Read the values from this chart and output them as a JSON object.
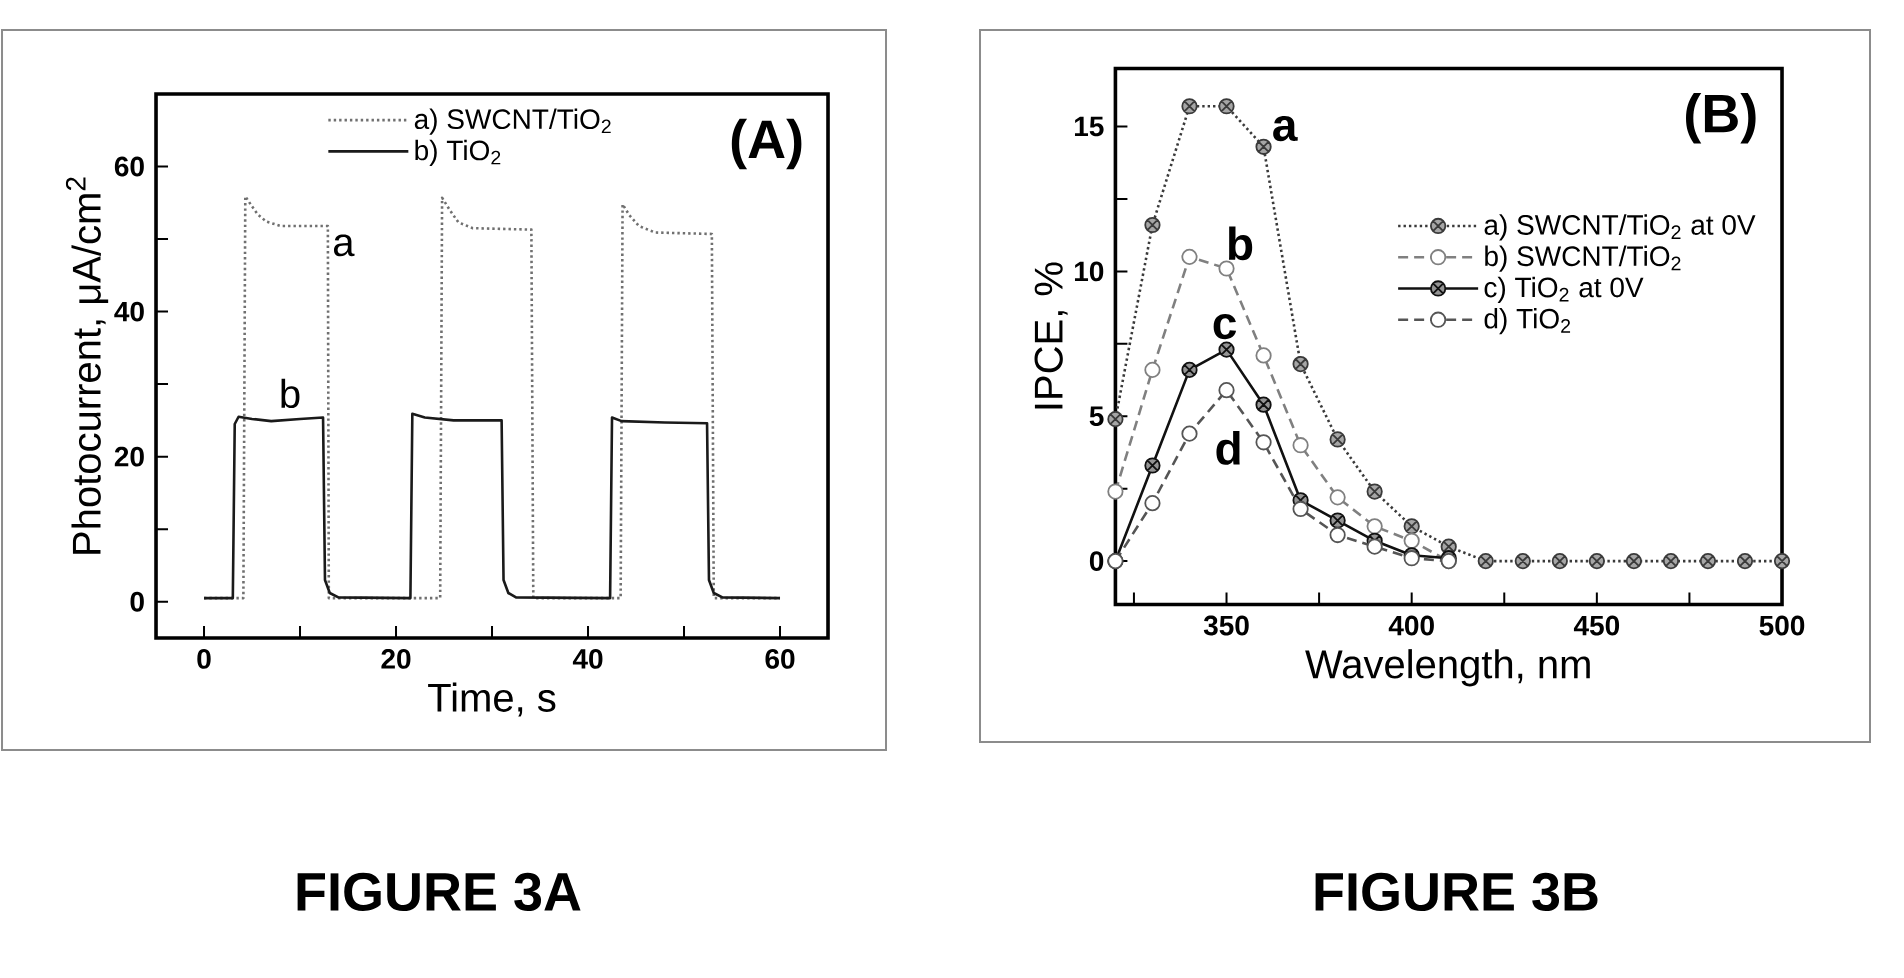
{
  "chart_data": [
    {
      "type": "line",
      "title": "(A)",
      "xlabel": "Time, s",
      "ylabel": "Photocurrent, μA/cm$^{2}$",
      "xlim": [
        -5,
        65
      ],
      "ylim": [
        -5,
        70
      ],
      "xticks": [
        0,
        {
          "value": 10,
          "label": null
        },
        20,
        {
          "value": 30,
          "label": null
        },
        40,
        {
          "value": 50,
          "label": null
        },
        60
      ],
      "yticks": [
        0,
        {
          "value": 10,
          "label": null
        },
        20,
        {
          "value": 30,
          "label": null
        },
        40,
        {
          "value": 50,
          "label": null
        },
        60
      ],
      "legend": "top",
      "series": [
        {
          "name": "a) SWCNT/TiO$_{2}$",
          "color": "#707070",
          "line_style": "dotted",
          "x": [
            0,
            4.1,
            4.3,
            5,
            5.6,
            6.5,
            8,
            12.9,
            13.0,
            24.6,
            24.8,
            25.6,
            26.5,
            28,
            34.1,
            34.3,
            43.4,
            43.6,
            44.3,
            45.3,
            47,
            52.9,
            53.1,
            60
          ],
          "values": [
            0.5,
            0.5,
            55.9,
            54.5,
            53.4,
            52.4,
            51.8,
            51.8,
            0.5,
            0.5,
            55.7,
            54,
            52.3,
            51.5,
            51.3,
            0.5,
            0.5,
            54.8,
            53.3,
            51.8,
            50.9,
            50.7,
            0.5,
            0.5
          ]
        },
        {
          "name": "b) TiO$_{2}$",
          "color": "#1a1a1a",
          "line_style": "solid",
          "x": [
            0,
            3.0,
            3.2,
            3.6,
            5,
            7,
            10,
            12.4,
            12.6,
            13.1,
            14,
            21.5,
            21.7,
            23,
            26,
            31.0,
            31.2,
            31.7,
            32.5,
            42.3,
            42.5,
            43.5,
            48,
            52.4,
            52.6,
            53.1,
            54,
            60
          ],
          "values": [
            0.5,
            0.5,
            24.5,
            25.5,
            25.2,
            24.9,
            25.2,
            25.4,
            3,
            1.2,
            0.6,
            0.5,
            25.9,
            25.4,
            25.0,
            25.0,
            3,
            1.2,
            0.6,
            0.5,
            25.4,
            24.9,
            24.7,
            24.6,
            3,
            1.2,
            0.6,
            0.5
          ]
        }
      ],
      "annotations": [
        "a",
        "b",
        "FIGURE 3A"
      ]
    },
    {
      "type": "line",
      "title": "(B)",
      "xlabel": "Wavelength, nm",
      "ylabel": "IPCE, %",
      "xlim": [
        320,
        500
      ],
      "ylim": [
        -1.5,
        17
      ],
      "xticks": [
        {
          "value": 325,
          "label": null
        },
        350,
        {
          "value": 375,
          "label": null
        },
        400,
        {
          "value": 425,
          "label": null
        },
        450,
        {
          "value": 475,
          "label": null
        },
        500
      ],
      "yticks": [
        0,
        {
          "value": 2.5,
          "label": null
        },
        5,
        {
          "value": 7.5,
          "label": null
        },
        10,
        {
          "value": 12.5,
          "label": null
        },
        15
      ],
      "legend": "right",
      "x": [
        320,
        330,
        340,
        350,
        360,
        370,
        380,
        390,
        400,
        410,
        420,
        430,
        440,
        450,
        460,
        470,
        480,
        490,
        500
      ],
      "series": [
        {
          "name": "a) SWCNT/TiO$_{2}$ at 0V",
          "color": "#3a3a3a",
          "line_style": "dotted",
          "marker": "cross",
          "values": [
            4.9,
            11.6,
            15.7,
            15.7,
            14.3,
            6.8,
            4.2,
            2.4,
            1.2,
            0.5,
            0,
            0,
            0,
            0,
            0,
            0,
            0,
            0,
            0
          ]
        },
        {
          "name": "b) SWCNT/TiO$_{2}$",
          "color": "#808080",
          "line_style": "dashed",
          "marker": "circle",
          "values": [
            2.4,
            6.6,
            10.5,
            10.1,
            7.1,
            4.0,
            2.2,
            1.2,
            0.7,
            0,
            null,
            null,
            null,
            null,
            null,
            null,
            null,
            null,
            null
          ]
        },
        {
          "name": "c) TiO$_{2}$ at 0V",
          "color": "#111111",
          "line_style": "solid",
          "marker": "cross",
          "values": [
            0,
            3.3,
            6.6,
            7.3,
            5.4,
            2.1,
            1.4,
            0.7,
            0.2,
            0.1,
            null,
            null,
            null,
            null,
            null,
            null,
            null,
            null,
            null
          ]
        },
        {
          "name": "d) TiO$_{2}$",
          "color": "#555555",
          "line_style": "dashed",
          "marker": "circle",
          "values": [
            0,
            2.0,
            4.4,
            5.9,
            4.1,
            1.8,
            0.9,
            0.5,
            0.1,
            0,
            null,
            null,
            null,
            null,
            null,
            null,
            null,
            null,
            null
          ]
        }
      ],
      "annotations": [
        "a",
        "b",
        "c",
        "d",
        "FIGURE 3B"
      ]
    }
  ]
}
